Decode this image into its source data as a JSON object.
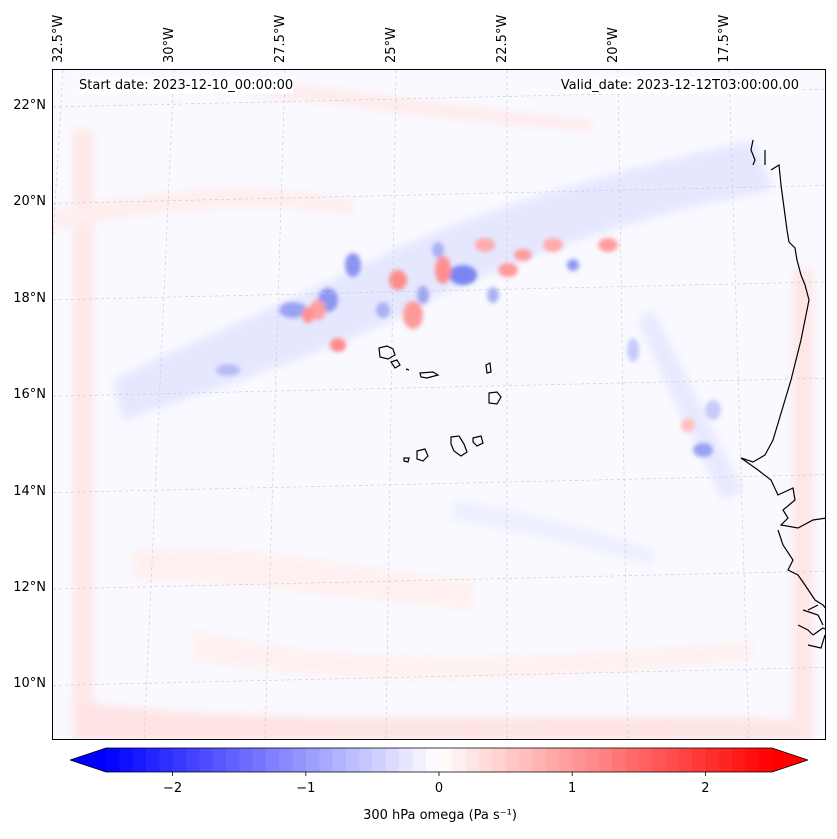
{
  "map": {
    "start_date_label": "Start date: 2023-12-10_00:00:00",
    "valid_date_label": "Valid_date: 2023-12-12T03:00:00.00",
    "lon_labels": [
      "32.5°W",
      "30°W",
      "27.5°W",
      "25°W",
      "22.5°W",
      "20°W",
      "17.5°W"
    ],
    "lat_labels": [
      "22°N",
      "20°N",
      "18°N",
      "16°N",
      "14°N",
      "12°N",
      "10°N"
    ],
    "lon_values": [
      -32.5,
      -30,
      -27.5,
      -25,
      -22.5,
      -20,
      -17.5
    ],
    "lat_values": [
      22,
      20,
      18,
      16,
      14,
      12,
      10
    ],
    "field": "300 hPa omega"
  },
  "colorbar": {
    "label": "300 hPa omega (Pa s⁻¹)",
    "ticks": [
      "−2",
      "−1",
      "0",
      "1",
      "2"
    ],
    "tick_values": [
      -2,
      -1,
      0,
      1,
      2
    ],
    "range": [
      -2.5,
      2.5
    ],
    "cmap": "bwr",
    "color_negative": "#0000ff",
    "color_zero": "#ffffff",
    "color_positive": "#ff0000"
  }
}
